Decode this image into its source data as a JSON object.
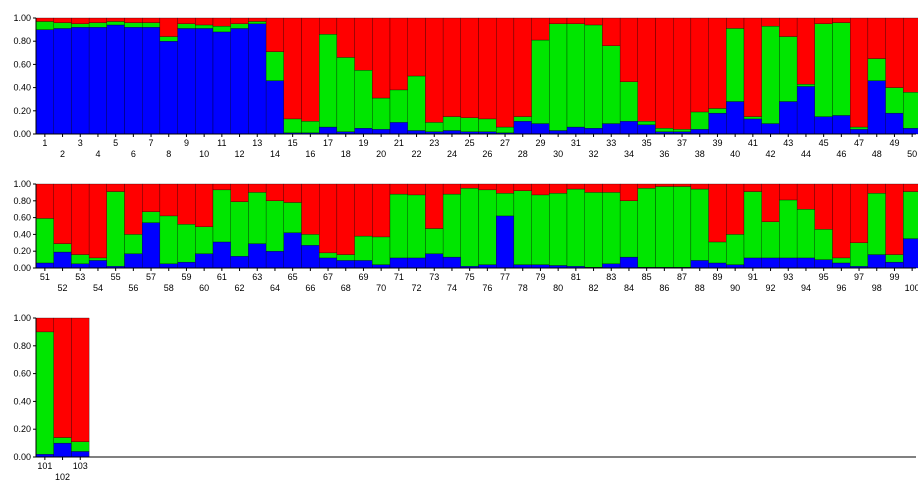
{
  "chart_data": {
    "type": "bar",
    "stacked": true,
    "normalized": true,
    "ylim": [
      0,
      1
    ],
    "yticks": [
      "0.00",
      "0.20",
      "0.40",
      "0.60",
      "0.80",
      "1.00"
    ],
    "series_order": [
      "blue",
      "green",
      "red"
    ],
    "colors": {
      "blue": "#0000ff",
      "green": "#00e600",
      "red": "#ff0000"
    },
    "panels": [
      {
        "categories": [
          "1",
          "2",
          "3",
          "4",
          "5",
          "6",
          "7",
          "8",
          "9",
          "10",
          "11",
          "12",
          "13",
          "14",
          "15",
          "16",
          "17",
          "18",
          "19",
          "20",
          "21",
          "22",
          "23",
          "24",
          "25",
          "26",
          "27",
          "28",
          "29",
          "30",
          "31",
          "32",
          "33",
          "34",
          "35",
          "36",
          "37",
          "38",
          "39",
          "40",
          "41",
          "42",
          "43",
          "44",
          "45",
          "46",
          "47",
          "48",
          "49",
          "50"
        ],
        "series": [
          {
            "values": [
              0.9,
              0.91,
              0.92,
              0.92,
              0.94,
              0.92,
              0.92,
              0.8,
              0.91,
              0.91,
              0.88,
              0.91,
              0.95,
              0.46,
              0.01,
              0.01,
              0.06,
              0.02,
              0.05,
              0.04,
              0.1,
              0.03,
              0.02,
              0.03,
              0.02,
              0.02,
              0.01,
              0.11,
              0.09,
              0.03,
              0.06,
              0.05,
              0.09,
              0.11,
              0.08,
              0.02,
              0.02,
              0.04,
              0.18,
              0.28,
              0.13,
              0.09,
              0.28,
              0.41,
              0.15,
              0.16,
              0.04,
              0.46,
              0.18,
              0.05
            ]
          },
          {
            "values": [
              0.07,
              0.05,
              0.03,
              0.04,
              0.03,
              0.04,
              0.04,
              0.04,
              0.04,
              0.03,
              0.05,
              0.04,
              0.02,
              0.25,
              0.12,
              0.1,
              0.8,
              0.64,
              0.5,
              0.27,
              0.28,
              0.47,
              0.08,
              0.12,
              0.12,
              0.11,
              0.05,
              0.04,
              0.72,
              0.92,
              0.89,
              0.89,
              0.67,
              0.34,
              0.03,
              0.03,
              0.02,
              0.15,
              0.04,
              0.63,
              0.02,
              0.84,
              0.56,
              0.02,
              0.8,
              0.8,
              0.02,
              0.19,
              0.22,
              0.31
            ]
          },
          {
            "values": [
              0.03,
              0.04,
              0.05,
              0.04,
              0.03,
              0.04,
              0.04,
              0.16,
              0.05,
              0.06,
              0.07,
              0.05,
              0.03,
              0.29,
              0.87,
              0.89,
              0.14,
              0.34,
              0.45,
              0.69,
              0.62,
              0.5,
              0.9,
              0.85,
              0.86,
              0.87,
              0.94,
              0.85,
              0.19,
              0.05,
              0.05,
              0.06,
              0.24,
              0.55,
              0.89,
              0.95,
              0.96,
              0.81,
              0.78,
              0.09,
              0.85,
              0.07,
              0.16,
              0.57,
              0.05,
              0.04,
              0.94,
              0.35,
              0.6,
              0.64
            ]
          }
        ]
      },
      {
        "categories": [
          "51",
          "52",
          "53",
          "54",
          "55",
          "56",
          "57",
          "58",
          "59",
          "60",
          "61",
          "62",
          "63",
          "64",
          "65",
          "66",
          "67",
          "68",
          "69",
          "70",
          "71",
          "72",
          "73",
          "74",
          "75",
          "76",
          "77",
          "78",
          "79",
          "80",
          "81",
          "82",
          "83",
          "84",
          "85",
          "86",
          "87",
          "88",
          "89",
          "90",
          "91",
          "92",
          "93",
          "94",
          "95",
          "96",
          "97",
          "98",
          "99",
          "100"
        ],
        "series": [
          {
            "values": [
              0.06,
              0.19,
              0.05,
              0.09,
              0.02,
              0.17,
              0.54,
              0.05,
              0.07,
              0.17,
              0.31,
              0.14,
              0.29,
              0.2,
              0.42,
              0.27,
              0.12,
              0.09,
              0.09,
              0.04,
              0.12,
              0.12,
              0.17,
              0.13,
              0.02,
              0.04,
              0.62,
              0.04,
              0.04,
              0.03,
              0.02,
              0.01,
              0.05,
              0.13,
              0.01,
              0.01,
              0.01,
              0.09,
              0.06,
              0.04,
              0.12,
              0.12,
              0.12,
              0.12,
              0.1,
              0.06,
              0.02,
              0.16,
              0.07,
              0.35
            ]
          },
          {
            "values": [
              0.53,
              0.1,
              0.11,
              0.03,
              0.89,
              0.23,
              0.13,
              0.57,
              0.45,
              0.32,
              0.62,
              0.65,
              0.61,
              0.6,
              0.36,
              0.13,
              0.06,
              0.07,
              0.29,
              0.33,
              0.76,
              0.75,
              0.3,
              0.75,
              0.93,
              0.89,
              0.27,
              0.88,
              0.83,
              0.86,
              0.92,
              0.89,
              0.85,
              0.67,
              0.94,
              0.96,
              0.96,
              0.85,
              0.25,
              0.36,
              0.79,
              0.43,
              0.69,
              0.58,
              0.36,
              0.06,
              0.28,
              0.73,
              0.09,
              0.56
            ]
          },
          {
            "values": [
              0.41,
              0.71,
              0.84,
              0.88,
              0.09,
              0.6,
              0.33,
              0.38,
              0.48,
              0.51,
              0.07,
              0.21,
              0.1,
              0.2,
              0.22,
              0.6,
              0.82,
              0.84,
              0.62,
              0.63,
              0.12,
              0.13,
              0.53,
              0.12,
              0.05,
              0.07,
              0.11,
              0.08,
              0.13,
              0.11,
              0.06,
              0.1,
              0.1,
              0.2,
              0.05,
              0.03,
              0.03,
              0.06,
              0.69,
              0.6,
              0.09,
              0.45,
              0.19,
              0.3,
              0.54,
              0.88,
              0.7,
              0.11,
              0.84,
              0.09
            ]
          }
        ]
      },
      {
        "categories": [
          "101",
          "102",
          "103"
        ],
        "series": [
          {
            "values": [
              0.02,
              0.1,
              0.04
            ]
          },
          {
            "values": [
              0.88,
              0.04,
              0.07
            ]
          },
          {
            "values": [
              0.1,
              0.86,
              0.89
            ]
          }
        ]
      }
    ]
  }
}
